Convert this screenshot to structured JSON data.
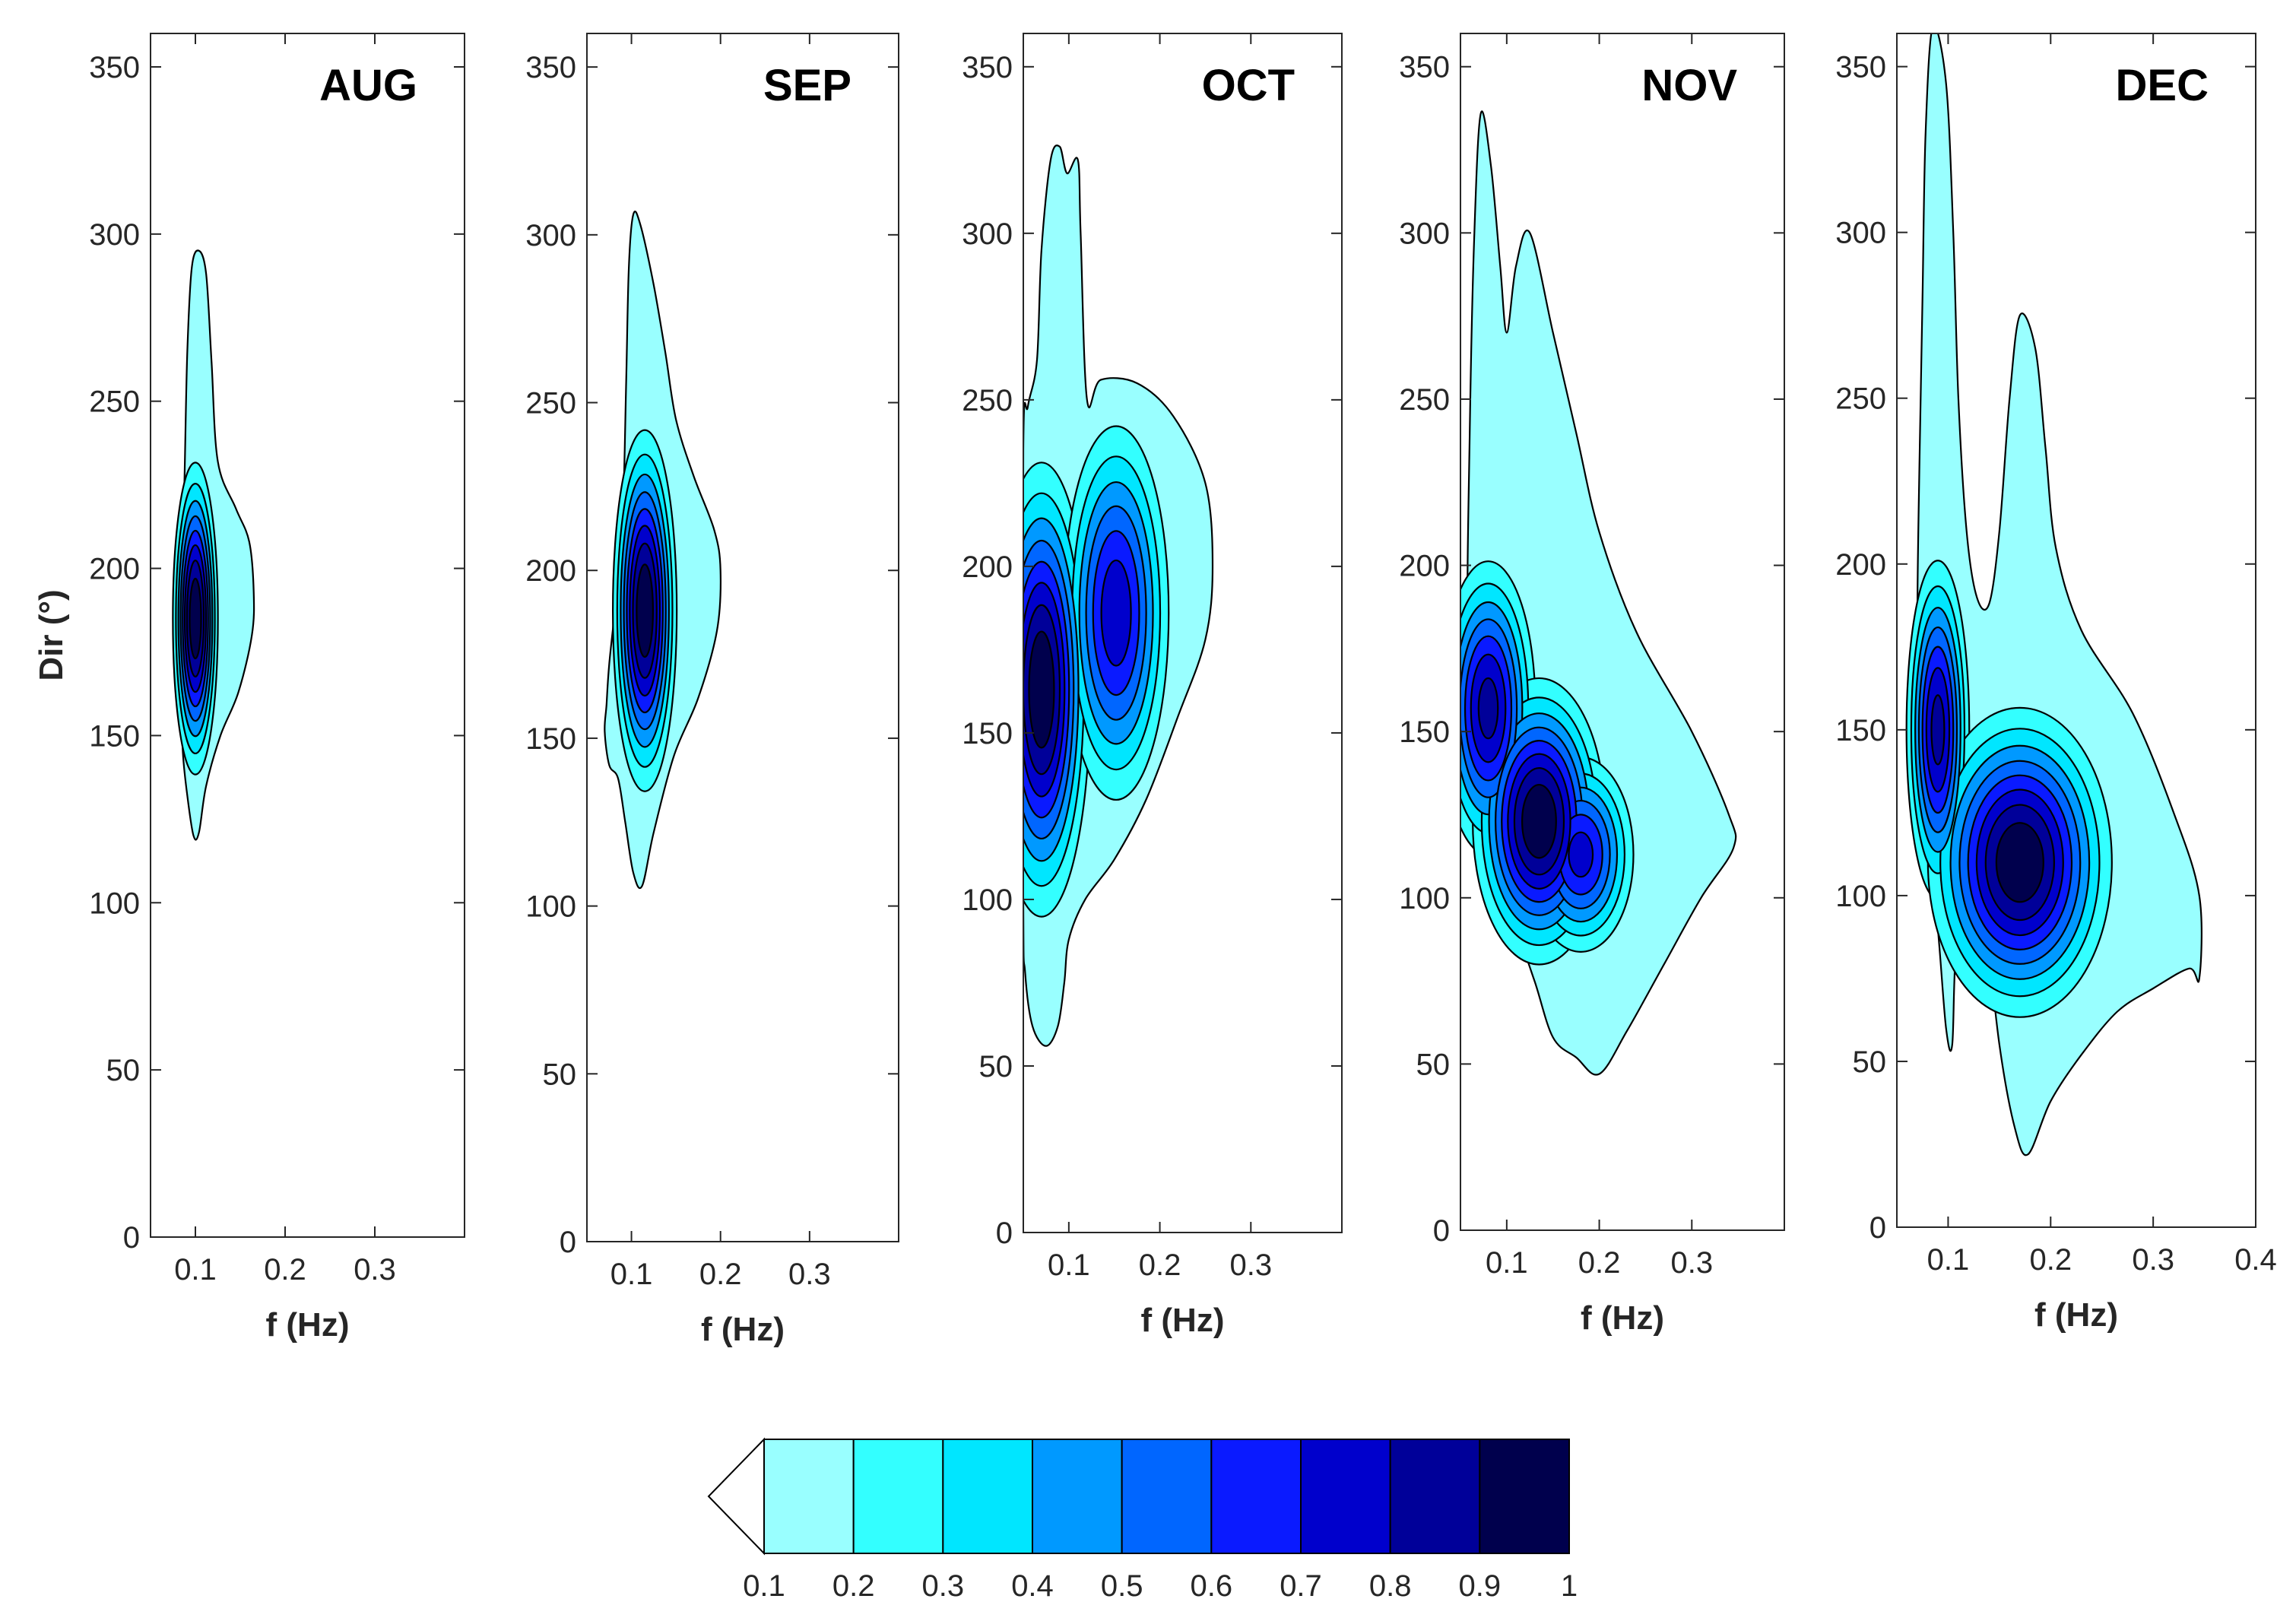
{
  "chart_data": {
    "type": "contour",
    "xlabel": "f (Hz)",
    "ylabel": "Dir (°)",
    "ylim": [
      0,
      360
    ],
    "xlim": [
      0.05,
      0.4
    ],
    "yticks": [
      0,
      50,
      100,
      150,
      200,
      250,
      300,
      350
    ],
    "colorbar": {
      "ticks": [
        "0.1",
        "0.2",
        "0.3",
        "0.4",
        "0.5",
        "0.6",
        "0.7",
        "0.8",
        "0.9",
        "1"
      ],
      "colors": [
        "#99ffff",
        "#33ffff",
        "#00e6ff",
        "#0099ff",
        "#0066ff",
        "#0a1aff",
        "#0000cc",
        "#000099",
        "#00004d"
      ]
    },
    "panels": [
      {
        "title": "AUG",
        "xticks": [
          "0.1",
          "0.2",
          "0.3"
        ],
        "show_ylabel": true,
        "peaks": [
          {
            "f": 0.1,
            "dir": 185,
            "sf": 0.014,
            "sd": 26,
            "amp": 1.0
          }
        ],
        "levels": [
          {
            "level": 0.1,
            "shape": [
              [
                0.084,
                163
              ],
              [
                0.086,
                145
              ],
              [
                0.091,
                132
              ],
              [
                0.098,
                120
              ],
              [
                0.104,
                121
              ],
              [
                0.112,
                135
              ],
              [
                0.128,
                150
              ],
              [
                0.148,
                163
              ],
              [
                0.163,
                180
              ],
              [
                0.165,
                193
              ],
              [
                0.16,
                208
              ],
              [
                0.145,
                218
              ],
              [
                0.125,
                232
              ],
              [
                0.118,
                262
              ],
              [
                0.112,
                288
              ],
              [
                0.104,
                295
              ],
              [
                0.096,
                290
              ],
              [
                0.091,
                265
              ],
              [
                0.088,
                228
              ],
              [
                0.085,
                195
              ]
            ]
          }
        ]
      },
      {
        "title": "SEP",
        "xticks": [
          "0.1",
          "0.2",
          "0.3"
        ],
        "show_ylabel": false,
        "peaks": [
          {
            "f": 0.115,
            "dir": 188,
            "sf": 0.02,
            "sd": 30,
            "amp": 1.0
          }
        ],
        "levels": [
          {
            "level": 0.1,
            "shape": [
              [
                0.072,
                160
              ],
              [
                0.07,
                152
              ],
              [
                0.075,
                142
              ],
              [
                0.085,
                138
              ],
              [
                0.093,
                125
              ],
              [
                0.102,
                110
              ],
              [
                0.112,
                106
              ],
              [
                0.125,
                122
              ],
              [
                0.148,
                145
              ],
              [
                0.175,
                162
              ],
              [
                0.196,
                182
              ],
              [
                0.2,
                200
              ],
              [
                0.193,
                212
              ],
              [
                0.17,
                228
              ],
              [
                0.15,
                245
              ],
              [
                0.138,
                265
              ],
              [
                0.125,
                285
              ],
              [
                0.11,
                303
              ],
              [
                0.102,
                306
              ],
              [
                0.097,
                290
              ],
              [
                0.094,
                255
              ],
              [
                0.09,
                215
              ],
              [
                0.082,
                190
              ],
              [
                0.075,
                172
              ]
            ]
          }
        ]
      },
      {
        "title": "OCT",
        "xticks": [
          "0.1",
          "0.2",
          "0.3"
        ],
        "show_ylabel": false,
        "peaks": [
          {
            "f": 0.07,
            "dir": 163,
            "sf": 0.03,
            "sd": 38,
            "amp": 1.0
          },
          {
            "f": 0.152,
            "dir": 186,
            "sf": 0.035,
            "sd": 34,
            "amp": 0.78
          }
        ],
        "levels": [
          {
            "level": 0.1,
            "shape": [
              [
                0.05,
                100
              ],
              [
                0.052,
                78
              ],
              [
                0.06,
                62
              ],
              [
                0.075,
                56
              ],
              [
                0.088,
                62
              ],
              [
                0.095,
                75
              ],
              [
                0.1,
                88
              ],
              [
                0.118,
                100
              ],
              [
                0.15,
                112
              ],
              [
                0.185,
                130
              ],
              [
                0.22,
                155
              ],
              [
                0.25,
                178
              ],
              [
                0.258,
                200
              ],
              [
                0.25,
                225
              ],
              [
                0.215,
                245
              ],
              [
                0.175,
                255
              ],
              [
                0.135,
                256
              ],
              [
                0.12,
                250
              ],
              [
                0.113,
                300
              ],
              [
                0.11,
                322
              ],
              [
                0.098,
                318
              ],
              [
                0.09,
                326
              ],
              [
                0.08,
                322
              ],
              [
                0.07,
                295
              ],
              [
                0.065,
                262
              ],
              [
                0.055,
                248
              ],
              [
                0.05,
                235
              ]
            ]
          }
        ]
      },
      {
        "title": "NOV",
        "xticks": [
          "0.1",
          "0.2",
          "0.3"
        ],
        "show_ylabel": false,
        "peaks": [
          {
            "f": 0.08,
            "dir": 157,
            "sf": 0.03,
            "sd": 26,
            "amp": 0.85
          },
          {
            "f": 0.135,
            "dir": 123,
            "sf": 0.04,
            "sd": 24,
            "amp": 1.0
          },
          {
            "f": 0.18,
            "dir": 113,
            "sf": 0.035,
            "sd": 18,
            "amp": 0.75
          }
        ],
        "levels": [
          {
            "level": 0.1,
            "shape": [
              [
                0.068,
                150
              ],
              [
                0.073,
                120
              ],
              [
                0.083,
                103
              ],
              [
                0.11,
                90
              ],
              [
                0.13,
                75
              ],
              [
                0.15,
                58
              ],
              [
                0.175,
                52
              ],
              [
                0.2,
                47
              ],
              [
                0.23,
                60
              ],
              [
                0.27,
                80
              ],
              [
                0.31,
                100
              ],
              [
                0.345,
                115
              ],
              [
                0.34,
                125
              ],
              [
                0.3,
                150
              ],
              [
                0.24,
                180
              ],
              [
                0.2,
                210
              ],
              [
                0.175,
                240
              ],
              [
                0.15,
                270
              ],
              [
                0.125,
                300
              ],
              [
                0.11,
                290
              ],
              [
                0.1,
                270
              ],
              [
                0.093,
                290
              ],
              [
                0.083,
                320
              ],
              [
                0.072,
                336
              ],
              [
                0.065,
                300
              ],
              [
                0.06,
                240
              ],
              [
                0.058,
                180
              ]
            ]
          }
        ]
      },
      {
        "title": "DEC",
        "xticks": [
          "0.1",
          "0.2",
          "0.3",
          "0.4"
        ],
        "show_ylabel": false,
        "peaks": [
          {
            "f": 0.09,
            "dir": 150,
            "sf": 0.018,
            "sd": 30,
            "amp": 0.85
          },
          {
            "f": 0.17,
            "dir": 110,
            "sf": 0.05,
            "sd": 26,
            "amp": 1.0
          }
        ],
        "levels": [
          {
            "level": 0.1,
            "shape": [
              [
                0.08,
                120
              ],
              [
                0.09,
                90
              ],
              [
                0.098,
                60
              ],
              [
                0.104,
                55
              ],
              [
                0.108,
                85
              ],
              [
                0.122,
                110
              ],
              [
                0.135,
                95
              ],
              [
                0.15,
                55
              ],
              [
                0.165,
                30
              ],
              [
                0.178,
                22
              ],
              [
                0.2,
                38
              ],
              [
                0.23,
                52
              ],
              [
                0.265,
                65
              ],
              [
                0.3,
                72
              ],
              [
                0.335,
                78
              ],
              [
                0.345,
                75
              ],
              [
                0.345,
                100
              ],
              [
                0.32,
                125
              ],
              [
                0.28,
                155
              ],
              [
                0.23,
                180
              ],
              [
                0.205,
                205
              ],
              [
                0.195,
                235
              ],
              [
                0.185,
                265
              ],
              [
                0.17,
                275
              ],
              [
                0.16,
                250
              ],
              [
                0.15,
                210
              ],
              [
                0.14,
                188
              ],
              [
                0.128,
                190
              ],
              [
                0.118,
                210
              ],
              [
                0.11,
                250
              ],
              [
                0.105,
                300
              ],
              [
                0.098,
                345
              ],
              [
                0.085,
                362
              ],
              [
                0.078,
                330
              ],
              [
                0.075,
                280
              ],
              [
                0.072,
                230
              ],
              [
                0.07,
                180
              ],
              [
                0.073,
                145
              ]
            ]
          }
        ]
      }
    ]
  }
}
